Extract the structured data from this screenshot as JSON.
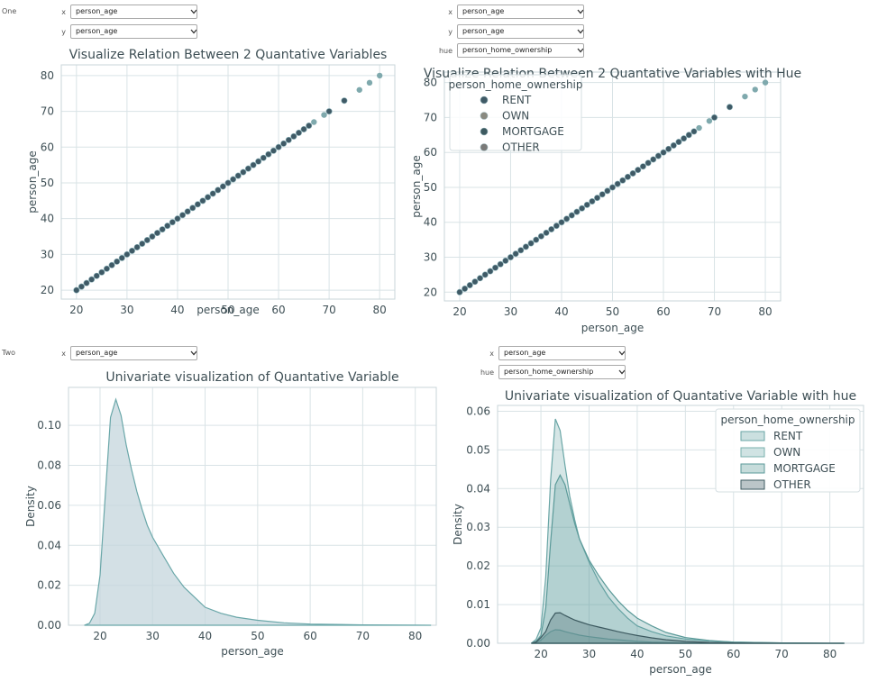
{
  "widgets": {
    "one": {
      "row_label": "One",
      "left": {
        "x_label": "x",
        "x_value": "person_age",
        "y_label": "y",
        "y_value": "person_age"
      },
      "right": {
        "x_label": "x",
        "x_value": "person_age",
        "y_label": "y",
        "y_value": "person_age",
        "hue_label": "hue",
        "hue_value": "person_home_ownership"
      }
    },
    "two": {
      "row_label": "Two",
      "left": {
        "x_label": "x",
        "x_value": "person_age"
      },
      "right": {
        "x_label": "x",
        "x_value": "person_age",
        "hue_label": "hue",
        "hue_value": "person_home_ownership"
      }
    }
  },
  "colors": {
    "axes_text": "#3e4f55",
    "grid": "#d9e3e6",
    "spine": "#c8d6da",
    "teal": "#6aa6a6",
    "dark": "#3d5a60",
    "scatter": "#3f5a66",
    "kde_fill": "#c4d5dc",
    "kde_line": "#6aa7a9"
  },
  "chart_data": [
    {
      "type": "scatter",
      "title": "Visualize Relation Between 2 Quantative Variables",
      "xlabel": "person_age",
      "ylabel": "person_age",
      "xlim": [
        17,
        83
      ],
      "ylim": [
        17.5,
        83
      ],
      "xticks": [
        20,
        30,
        40,
        50,
        60,
        70,
        80
      ],
      "yticks": [
        20,
        30,
        40,
        50,
        60,
        70,
        80
      ],
      "x": [
        20,
        21,
        22,
        23,
        24,
        25,
        26,
        27,
        28,
        29,
        30,
        31,
        32,
        33,
        34,
        35,
        36,
        37,
        38,
        39,
        40,
        41,
        42,
        43,
        44,
        45,
        46,
        47,
        48,
        49,
        50,
        51,
        52,
        53,
        54,
        55,
        56,
        57,
        58,
        59,
        60,
        61,
        62,
        63,
        64,
        65,
        66,
        67,
        69,
        70,
        73,
        76,
        78,
        80
      ],
      "y": [
        20,
        21,
        22,
        23,
        24,
        25,
        26,
        27,
        28,
        29,
        30,
        31,
        32,
        33,
        34,
        35,
        36,
        37,
        38,
        39,
        40,
        41,
        42,
        43,
        44,
        45,
        46,
        47,
        48,
        49,
        50,
        51,
        52,
        53,
        54,
        55,
        56,
        57,
        58,
        59,
        60,
        61,
        62,
        63,
        64,
        65,
        66,
        67,
        69,
        70,
        73,
        76,
        78,
        80
      ],
      "grid": true
    },
    {
      "type": "scatter",
      "title": "Visualize Relation Between 2 Quantative Variables with Hue",
      "xlabel": "person_age",
      "ylabel": "person_age",
      "xlim": [
        17,
        83
      ],
      "ylim": [
        17.5,
        83
      ],
      "xticks": [
        20,
        30,
        40,
        50,
        60,
        70,
        80
      ],
      "yticks": [
        20,
        30,
        40,
        50,
        60,
        70,
        80
      ],
      "legend_title": "person_home_ownership",
      "legend_position": "top-left",
      "series": [
        {
          "name": "RENT",
          "color": "#3f5a66"
        },
        {
          "name": "OWN",
          "color": "#8a8a80"
        },
        {
          "name": "MORTGAGE",
          "color": "#3d5a60"
        },
        {
          "name": "OTHER",
          "color": "#7a7a78"
        }
      ],
      "x": [
        20,
        21,
        22,
        23,
        24,
        25,
        26,
        27,
        28,
        29,
        30,
        31,
        32,
        33,
        34,
        35,
        36,
        37,
        38,
        39,
        40,
        41,
        42,
        43,
        44,
        45,
        46,
        47,
        48,
        49,
        50,
        51,
        52,
        53,
        54,
        55,
        56,
        57,
        58,
        59,
        60,
        61,
        62,
        63,
        64,
        65,
        66,
        67,
        69,
        70,
        73,
        76,
        78,
        80
      ],
      "y": [
        20,
        21,
        22,
        23,
        24,
        25,
        26,
        27,
        28,
        29,
        30,
        31,
        32,
        33,
        34,
        35,
        36,
        37,
        38,
        39,
        40,
        41,
        42,
        43,
        44,
        45,
        46,
        47,
        48,
        49,
        50,
        51,
        52,
        53,
        54,
        55,
        56,
        57,
        58,
        59,
        60,
        61,
        62,
        63,
        64,
        65,
        66,
        67,
        69,
        70,
        73,
        76,
        78,
        80
      ],
      "grid": true
    },
    {
      "type": "area",
      "title": "Univariate visualization of Quantative Variable",
      "xlabel": "person_age",
      "ylabel": "Density",
      "xlim": [
        14,
        84
      ],
      "ylim": [
        0,
        0.119
      ],
      "xticks": [
        20,
        30,
        40,
        50,
        60,
        70,
        80
      ],
      "yticks": [
        0.0,
        0.02,
        0.04,
        0.06,
        0.08,
        0.1
      ],
      "ytick_labels": [
        "0.00",
        "0.02",
        "0.04",
        "0.06",
        "0.08",
        "0.10"
      ],
      "x": [
        17,
        18,
        19,
        20,
        21,
        22,
        23,
        24,
        25,
        26,
        27,
        28,
        29,
        30,
        32,
        34,
        36,
        38,
        40,
        43,
        46,
        50,
        55,
        60,
        70,
        80,
        83
      ],
      "y": [
        0.0,
        0.001,
        0.006,
        0.025,
        0.065,
        0.104,
        0.113,
        0.105,
        0.09,
        0.078,
        0.067,
        0.058,
        0.05,
        0.044,
        0.035,
        0.026,
        0.019,
        0.014,
        0.009,
        0.006,
        0.004,
        0.0025,
        0.0012,
        0.0006,
        0.0002,
        0.0001,
        0.0
      ],
      "grid": true
    },
    {
      "type": "area",
      "title": "Univariate visualization of Quantative Variable with hue",
      "xlabel": "person_age",
      "ylabel": "Density",
      "xlim": [
        11,
        87
      ],
      "ylim": [
        0,
        0.0615
      ],
      "xticks": [
        20,
        30,
        40,
        50,
        60,
        70,
        80
      ],
      "yticks": [
        0.0,
        0.01,
        0.02,
        0.03,
        0.04,
        0.05,
        0.06
      ],
      "ytick_labels": [
        "0.00",
        "0.01",
        "0.02",
        "0.03",
        "0.04",
        "0.05",
        "0.06"
      ],
      "legend_title": "person_home_ownership",
      "legend_position": "top-right",
      "x": [
        18,
        19,
        20,
        21,
        22,
        23,
        24,
        25,
        26,
        27,
        28,
        30,
        32,
        34,
        36,
        38,
        40,
        43,
        46,
        50,
        55,
        60,
        70,
        80,
        83
      ],
      "series": [
        {
          "name": "RENT",
          "color": "#6aa6a6",
          "values": [
            0.0,
            0.001,
            0.004,
            0.017,
            0.042,
            0.058,
            0.055,
            0.046,
            0.038,
            0.032,
            0.027,
            0.021,
            0.016,
            0.012,
            0.009,
            0.0065,
            0.0045,
            0.003,
            0.0019,
            0.0011,
            0.0006,
            0.0003,
            0.0001,
            0.0,
            0.0
          ]
        },
        {
          "name": "OWN",
          "color": "#78b0ae",
          "values": [
            0.0,
            0.0002,
            0.0008,
            0.002,
            0.003,
            0.0035,
            0.0034,
            0.003,
            0.0027,
            0.0024,
            0.0021,
            0.0017,
            0.0014,
            0.0011,
            0.0009,
            0.0007,
            0.0005,
            0.0003,
            0.0002,
            0.0001,
            0.0,
            0.0,
            0.0,
            0.0,
            0.0
          ]
        },
        {
          "name": "MORTGAGE",
          "color": "#5b9a99",
          "values": [
            0.0,
            0.0005,
            0.002,
            0.009,
            0.026,
            0.041,
            0.0435,
            0.041,
            0.036,
            0.031,
            0.027,
            0.0215,
            0.0175,
            0.014,
            0.011,
            0.0085,
            0.0065,
            0.0045,
            0.0028,
            0.0015,
            0.0007,
            0.0003,
            0.0001,
            0.0,
            0.0
          ]
        },
        {
          "name": "OTHER",
          "color": "#3d5a60",
          "values": [
            0.0,
            0.0003,
            0.0015,
            0.003,
            0.006,
            0.0078,
            0.0079,
            0.0072,
            0.0066,
            0.006,
            0.0056,
            0.0048,
            0.0042,
            0.0036,
            0.003,
            0.0025,
            0.002,
            0.0014,
            0.0009,
            0.0005,
            0.0002,
            0.0001,
            0.0,
            0.0,
            0.0
          ]
        }
      ],
      "grid": true
    }
  ]
}
